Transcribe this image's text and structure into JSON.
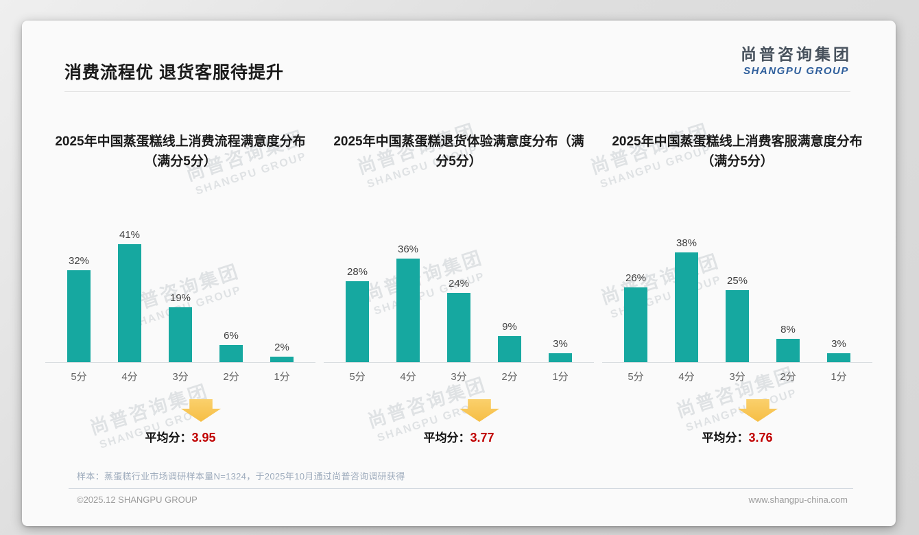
{
  "slide": {
    "title": "消费流程优 退货客服待提升",
    "logo": {
      "cn": "尚普咨询集团",
      "en": "SHANGPU GROUP"
    },
    "watermark": {
      "cn": "尚普咨询集团",
      "en": "SHANGPU GROUP"
    },
    "sample_note": "样本：蒸蛋糕行业市场调研样本量N=1324，于2025年10月通过尚普咨询调研获得",
    "footer_left": "©2025.12 SHANGPU GROUP",
    "footer_right": "www.shangpu-china.com"
  },
  "colors": {
    "bar": "#16a8a0",
    "avg_value": "#c00000",
    "arrow": "#f8c34e",
    "logo_blue": "#2f5f9c"
  },
  "chart_data": [
    {
      "type": "bar",
      "title": "2025年中国蒸蛋糕线上消费流程满意度分布（满分5分）",
      "categories": [
        "5分",
        "4分",
        "3分",
        "2分",
        "1分"
      ],
      "values": [
        32,
        41,
        19,
        6,
        2
      ],
      "unit": "%",
      "ylim": [
        0,
        45
      ],
      "grid": false,
      "legend": false,
      "avg_label": "平均分：",
      "avg_value": "3.95"
    },
    {
      "type": "bar",
      "title": "2025年中国蒸蛋糕退货体验满意度分布（满分5分）",
      "categories": [
        "5分",
        "4分",
        "3分",
        "2分",
        "1分"
      ],
      "values": [
        28,
        36,
        24,
        9,
        3
      ],
      "unit": "%",
      "ylim": [
        0,
        45
      ],
      "grid": false,
      "legend": false,
      "avg_label": "平均分：",
      "avg_value": "3.77"
    },
    {
      "type": "bar",
      "title": "2025年中国蒸蛋糕线上消费客服满意度分布（满分5分）",
      "categories": [
        "5分",
        "4分",
        "3分",
        "2分",
        "1分"
      ],
      "values": [
        26,
        38,
        25,
        8,
        3
      ],
      "unit": "%",
      "ylim": [
        0,
        45
      ],
      "grid": false,
      "legend": false,
      "avg_label": "平均分：",
      "avg_value": "3.76"
    }
  ]
}
